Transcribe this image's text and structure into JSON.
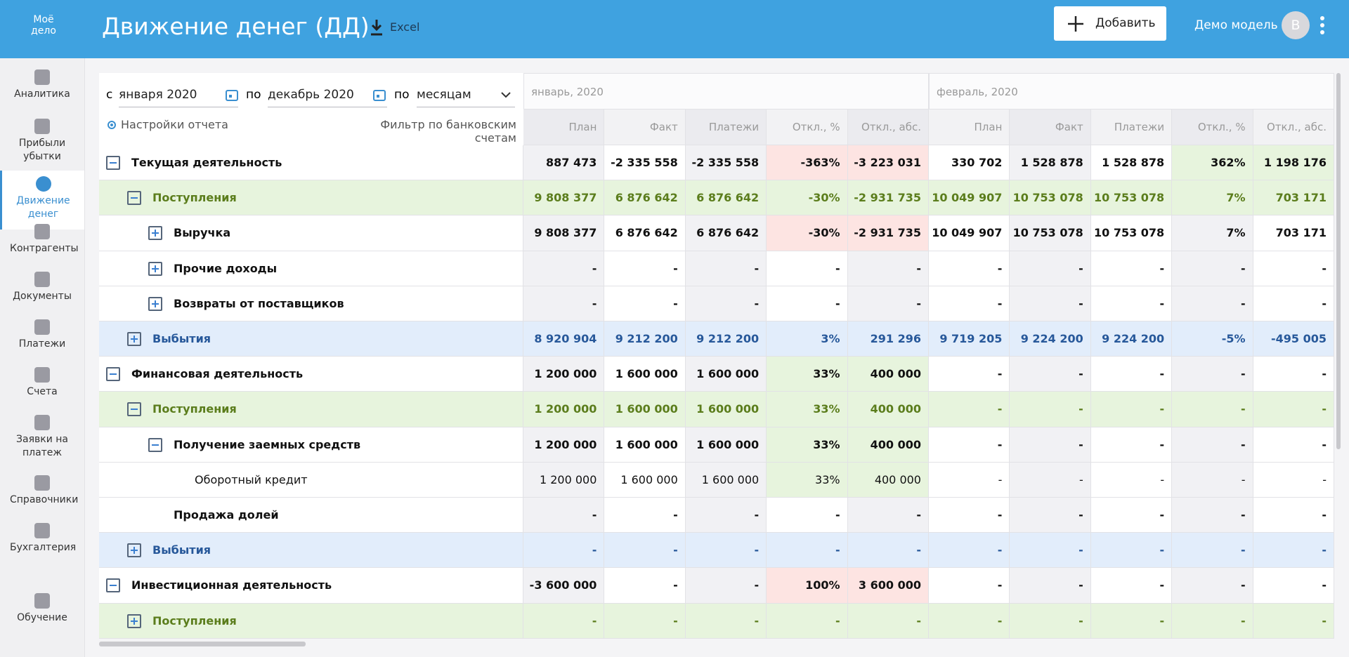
{
  "header": {
    "logo": "Моё дело",
    "title": "Движение денег (ДД)",
    "excel": "Excel",
    "add_button": "Добавить",
    "user": "Демо модель",
    "avatar": "В"
  },
  "sidebar": [
    "Аналитика",
    "Прибыли убытки",
    "Движение денег",
    "Контрагенты",
    "Документы",
    "Платежи",
    "Счета",
    "Заявки на платеж",
    "Справочники",
    "Бухгалтерия",
    "Обучение"
  ],
  "sidebar_active": 2,
  "filters": {
    "from_label": "с",
    "from": "января 2020",
    "to_label": "по",
    "to": "декабрь 2020",
    "by_label": "по",
    "by": "месяцам",
    "settings": "Настройки отчета",
    "bank_filter": "Фильтр по банковским счетам"
  },
  "table": {
    "months": [
      "январь, 2020",
      "февраль, 2020"
    ],
    "columns": [
      "План",
      "Факт",
      "Платежи",
      "Откл., %",
      "Откл., абс."
    ],
    "rows": [
      {
        "label": "Текущая деятельность",
        "level": 0,
        "kind": "section",
        "toggle": "minus",
        "cells": [
          "887 473",
          "-2 335 558",
          "-2 335 558",
          "-363%",
          "-3 223 031",
          "330 702",
          "1 528 878",
          "1 528 878",
          "362%",
          "1 198 176"
        ],
        "neg": [
          3,
          4
        ],
        "pos": [
          8,
          9
        ]
      },
      {
        "label": "Поступления",
        "level": 1,
        "kind": "income",
        "toggle": "minus",
        "cells": [
          "9 808 377",
          "6 876 642",
          "6 876 642",
          "-30%",
          "-2 931 735",
          "10 049 907",
          "10 753 078",
          "10 753 078",
          "7%",
          "703 171"
        ]
      },
      {
        "label": "Выручка",
        "level": 2,
        "kind": "item",
        "toggle": "plus",
        "cells": [
          "9 808 377",
          "6 876 642",
          "6 876 642",
          "-30%",
          "-2 931 735",
          "10 049 907",
          "10 753 078",
          "10 753 078",
          "7%",
          "703 171"
        ],
        "neg": [
          3,
          4
        ]
      },
      {
        "label": "Прочие доходы",
        "level": 2,
        "kind": "item",
        "toggle": "plus",
        "cells": [
          "-",
          "-",
          "-",
          "-",
          "-",
          "-",
          "-",
          "-",
          "-",
          "-"
        ]
      },
      {
        "label": "Возвраты от поставщиков",
        "level": 2,
        "kind": "item",
        "toggle": "plus",
        "cells": [
          "-",
          "-",
          "-",
          "-",
          "-",
          "-",
          "-",
          "-",
          "-",
          "-"
        ]
      },
      {
        "label": "Выбытия",
        "level": 1,
        "kind": "expense",
        "toggle": "plus",
        "cells": [
          "8 920 904",
          "9 212 200",
          "9 212 200",
          "3%",
          "291 296",
          "9 719 205",
          "9 224 200",
          "9 224 200",
          "-5%",
          "-495 005"
        ]
      },
      {
        "label": "Финансовая деятельность",
        "level": 0,
        "kind": "section",
        "toggle": "minus",
        "cells": [
          "1 200 000",
          "1 600 000",
          "1 600 000",
          "33%",
          "400 000",
          "-",
          "-",
          "-",
          "-",
          "-"
        ],
        "pos": [
          3,
          4
        ]
      },
      {
        "label": "Поступления",
        "level": 1,
        "kind": "income",
        "toggle": "minus",
        "cells": [
          "1 200 000",
          "1 600 000",
          "1 600 000",
          "33%",
          "400 000",
          "-",
          "-",
          "-",
          "-",
          "-"
        ]
      },
      {
        "label": "Получение заемных средств",
        "level": 2,
        "kind": "item",
        "toggle": "minus",
        "cells": [
          "1 200 000",
          "1 600 000",
          "1 600 000",
          "33%",
          "400 000",
          "-",
          "-",
          "-",
          "-",
          "-"
        ],
        "pos": [
          3,
          4
        ]
      },
      {
        "label": "Оборотный кредит",
        "level": 3,
        "kind": "plain",
        "toggle": "none",
        "cells": [
          "1 200 000",
          "1 600 000",
          "1 600 000",
          "33%",
          "400 000",
          "-",
          "-",
          "-",
          "-",
          "-"
        ],
        "pos": [
          3,
          4
        ]
      },
      {
        "label": "Продажа долей",
        "level": 2,
        "kind": "item",
        "toggle": "none",
        "cells": [
          "-",
          "-",
          "-",
          "-",
          "-",
          "-",
          "-",
          "-",
          "-",
          "-"
        ]
      },
      {
        "label": "Выбытия",
        "level": 1,
        "kind": "expense",
        "toggle": "plus",
        "cells": [
          "-",
          "-",
          "-",
          "-",
          "-",
          "-",
          "-",
          "-",
          "-",
          "-"
        ]
      },
      {
        "label": "Инвестиционная деятельность",
        "level": 0,
        "kind": "section",
        "toggle": "minus",
        "cells": [
          "-3 600 000",
          "-",
          "-",
          "100%",
          "3 600 000",
          "-",
          "-",
          "-",
          "-",
          "-"
        ],
        "neg": [
          3,
          4
        ]
      },
      {
        "label": "Поступления",
        "level": 1,
        "kind": "income",
        "toggle": "plus",
        "cells": [
          "-",
          "-",
          "-",
          "-",
          "-",
          "-",
          "-",
          "-",
          "-",
          "-"
        ]
      }
    ]
  }
}
